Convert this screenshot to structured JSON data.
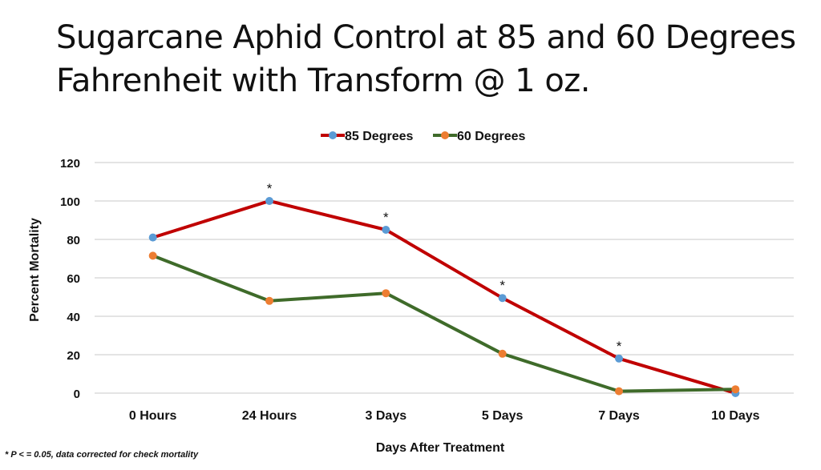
{
  "title": "Sugarcane Aphid Control at 85 and 60 Degrees Fahrenheit with Transform @ 1 oz.",
  "title_line1": "Sugarcane Aphid Control at 85 and 60 Degrees",
  "title_line2": "Fahrenheit with Transform @ 1 oz.",
  "footnote": "* P < = 0.05, data corrected for check mortality",
  "chart_data": {
    "type": "line",
    "title": "",
    "xlabel": "Days After Treatment",
    "ylabel": "Percent Mortality",
    "ylim": [
      0,
      120
    ],
    "yticks": [
      "0",
      "20",
      "40",
      "60",
      "80",
      "100",
      "120"
    ],
    "categories": [
      "0 Hours",
      "24 Hours",
      "3 Days",
      "5 Days",
      "7 Days",
      "10 Days"
    ],
    "grid": true,
    "legend_position": "top-center",
    "series": [
      {
        "name": "85 Degrees",
        "values": [
          81,
          100,
          85,
          49.5,
          18,
          0
        ],
        "line_color": "#C00000",
        "marker_color": "#5B9BD5"
      },
      {
        "name": "60 Degrees",
        "values": [
          71.5,
          48,
          52,
          20.5,
          1,
          2
        ],
        "line_color": "#3F6B2A",
        "marker_color": "#ED7D31"
      }
    ],
    "annotations": [
      {
        "category": "24 Hours",
        "text": "*"
      },
      {
        "category": "3 Days",
        "text": "*"
      },
      {
        "category": "5 Days",
        "text": "*"
      },
      {
        "category": "7 Days",
        "text": "*"
      }
    ]
  }
}
